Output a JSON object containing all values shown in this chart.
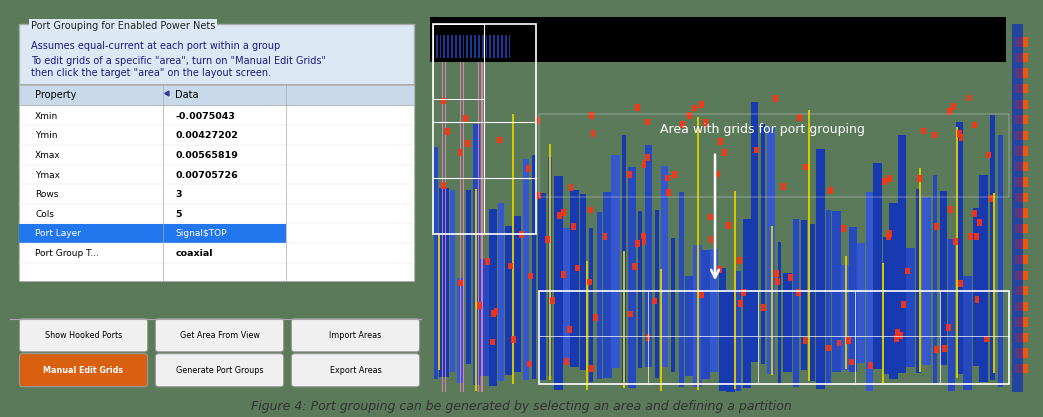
{
  "fig_width": 10.43,
  "fig_height": 4.17,
  "dpi": 100,
  "outer_bg": "#5a7a5a",
  "frame_bg": "#ffffff",
  "left_panel": {
    "bg": "#dce8f4",
    "groupbox_title": "Port Grouping for Enabled Power Nets",
    "groupbox_title_color": "#222222",
    "desc1": "Assumes equal-current at each port within a group",
    "desc2_line1": "To edit grids of a specific \"area\", turn on \"Manual Edit Grids\"",
    "desc2_line2": "then click the target \"area\" on the layout screen.",
    "text_color": "#1a1a88",
    "table_bg": "#ffffff",
    "table_header_bg": "#c8daea",
    "table_selected_bg": "#2277ee",
    "table_selected_text": "#ffffff",
    "table_normal_text": "#000000",
    "table_bold_text": "#000000",
    "table_rows": [
      [
        "Xmin",
        "-0.0075043",
        false
      ],
      [
        "Ymin",
        "0.00427202",
        false
      ],
      [
        "Xmax",
        "0.00565819",
        false
      ],
      [
        "Ymax",
        "0.00705726",
        false
      ],
      [
        "Rows",
        "3",
        false
      ],
      [
        "Cols",
        "5",
        false
      ],
      [
        "Port Layer",
        "Signal$TOP",
        true
      ],
      [
        "Port Group T...",
        "coaxial",
        false
      ]
    ],
    "col1_header": "Property",
    "col2_header": "Data",
    "buttons_row1": [
      "Show Hooked Ports",
      "Get Area From View",
      "Import Areas"
    ],
    "buttons_row2": [
      "Manual Edit Grids",
      "Generate Port Groups",
      "Export Areas"
    ],
    "btn_orange_bg": "#d96010",
    "btn_orange_text": "#ffffff",
    "btn_normal_bg": "#f0f0f0",
    "btn_border": "#999999"
  },
  "right_panel": {
    "bg": "#000000",
    "annotation_text": "Area with grids for port grouping",
    "annotation_color": "#ffffff",
    "annotation_fontsize": 9
  },
  "caption": "Figure 4: Port grouping can be generated by selecting an area and defining a partition",
  "caption_color": "#333333",
  "caption_fontsize": 9
}
